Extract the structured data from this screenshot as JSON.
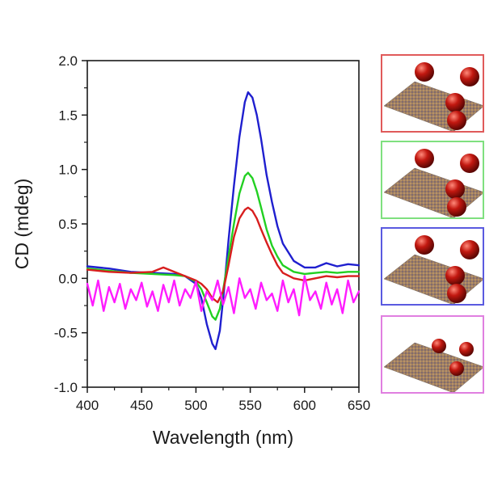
{
  "chart_data": {
    "type": "line",
    "xlabel": "Wavelength (nm)",
    "ylabel": "CD (mdeg)",
    "xlim": [
      400,
      650
    ],
    "ylim": [
      -1.0,
      2.0
    ],
    "x_ticks": [
      "400",
      "450",
      "500",
      "550",
      "600",
      "650"
    ],
    "y_ticks": [
      "-1.0",
      "-0.5",
      "0.0",
      "0.5",
      "1.0",
      "1.5",
      "2.0"
    ],
    "grid": false,
    "legend": "none",
    "series": [
      {
        "color": "#1f1fcf",
        "x": [
          400,
          420,
          440,
          460,
          480,
          490,
          500,
          505,
          510,
          515,
          518,
          522,
          526,
          530,
          535,
          540,
          545,
          548,
          552,
          556,
          560,
          565,
          570,
          575,
          580,
          590,
          600,
          610,
          620,
          630,
          640,
          650
        ],
        "y": [
          0.11,
          0.09,
          0.06,
          0.05,
          0.04,
          0.02,
          -0.05,
          -0.18,
          -0.42,
          -0.6,
          -0.65,
          -0.48,
          -0.1,
          0.35,
          0.85,
          1.3,
          1.62,
          1.71,
          1.66,
          1.5,
          1.28,
          0.95,
          0.7,
          0.48,
          0.32,
          0.16,
          0.1,
          0.1,
          0.14,
          0.11,
          0.13,
          0.12
        ]
      },
      {
        "color": "#22d022",
        "x": [
          400,
          420,
          440,
          460,
          480,
          490,
          500,
          505,
          510,
          515,
          518,
          522,
          526,
          530,
          535,
          540,
          545,
          548,
          552,
          556,
          560,
          565,
          570,
          575,
          580,
          590,
          600,
          610,
          620,
          630,
          640,
          650
        ],
        "y": [
          0.09,
          0.07,
          0.05,
          0.04,
          0.03,
          0.02,
          -0.03,
          -0.1,
          -0.22,
          -0.35,
          -0.38,
          -0.28,
          -0.05,
          0.2,
          0.5,
          0.78,
          0.94,
          0.97,
          0.92,
          0.8,
          0.65,
          0.45,
          0.3,
          0.2,
          0.12,
          0.06,
          0.04,
          0.05,
          0.06,
          0.05,
          0.06,
          0.06
        ]
      },
      {
        "color": "#d81e1e",
        "x": [
          400,
          420,
          440,
          460,
          470,
          480,
          490,
          500,
          505,
          510,
          515,
          520,
          525,
          530,
          535,
          540,
          545,
          548,
          552,
          556,
          560,
          565,
          570,
          575,
          580,
          590,
          600,
          610,
          620,
          630,
          640,
          650
        ],
        "y": [
          0.08,
          0.06,
          0.05,
          0.06,
          0.1,
          0.06,
          0.02,
          -0.02,
          -0.05,
          -0.1,
          -0.18,
          -0.22,
          -0.12,
          0.12,
          0.38,
          0.55,
          0.63,
          0.65,
          0.62,
          0.55,
          0.45,
          0.33,
          0.22,
          0.12,
          0.05,
          0.0,
          -0.02,
          0.0,
          0.02,
          0.01,
          0.02,
          0.02
        ]
      },
      {
        "color": "#ff1cff",
        "x": [
          400,
          405,
          410,
          415,
          420,
          425,
          430,
          435,
          440,
          445,
          450,
          455,
          460,
          465,
          470,
          475,
          480,
          485,
          490,
          495,
          500,
          505,
          510,
          515,
          520,
          525,
          530,
          535,
          540,
          545,
          550,
          555,
          560,
          565,
          570,
          575,
          580,
          585,
          590,
          595,
          600,
          605,
          610,
          615,
          620,
          625,
          630,
          635,
          640,
          645,
          650
        ],
        "y": [
          -0.05,
          -0.25,
          -0.02,
          -0.3,
          -0.08,
          -0.22,
          -0.05,
          -0.28,
          -0.1,
          -0.2,
          -0.04,
          -0.26,
          -0.12,
          -0.3,
          -0.06,
          -0.22,
          -0.02,
          -0.25,
          -0.1,
          -0.18,
          -0.03,
          -0.3,
          -0.12,
          -0.2,
          -0.02,
          -0.24,
          -0.08,
          -0.32,
          0.0,
          -0.18,
          -0.1,
          -0.28,
          -0.04,
          -0.2,
          -0.14,
          -0.3,
          -0.02,
          -0.22,
          -0.1,
          -0.34,
          0.02,
          -0.2,
          -0.12,
          -0.28,
          -0.04,
          -0.24,
          -0.1,
          -0.32,
          -0.02,
          -0.22,
          -0.12
        ]
      }
    ]
  },
  "panels": [
    {
      "border_color": "#e05a5a",
      "spheres": "large"
    },
    {
      "border_color": "#7fe07f",
      "spheres": "large"
    },
    {
      "border_color": "#5a5ae0",
      "spheres": "large"
    },
    {
      "border_color": "#e07fe0",
      "spheres": "small"
    }
  ]
}
